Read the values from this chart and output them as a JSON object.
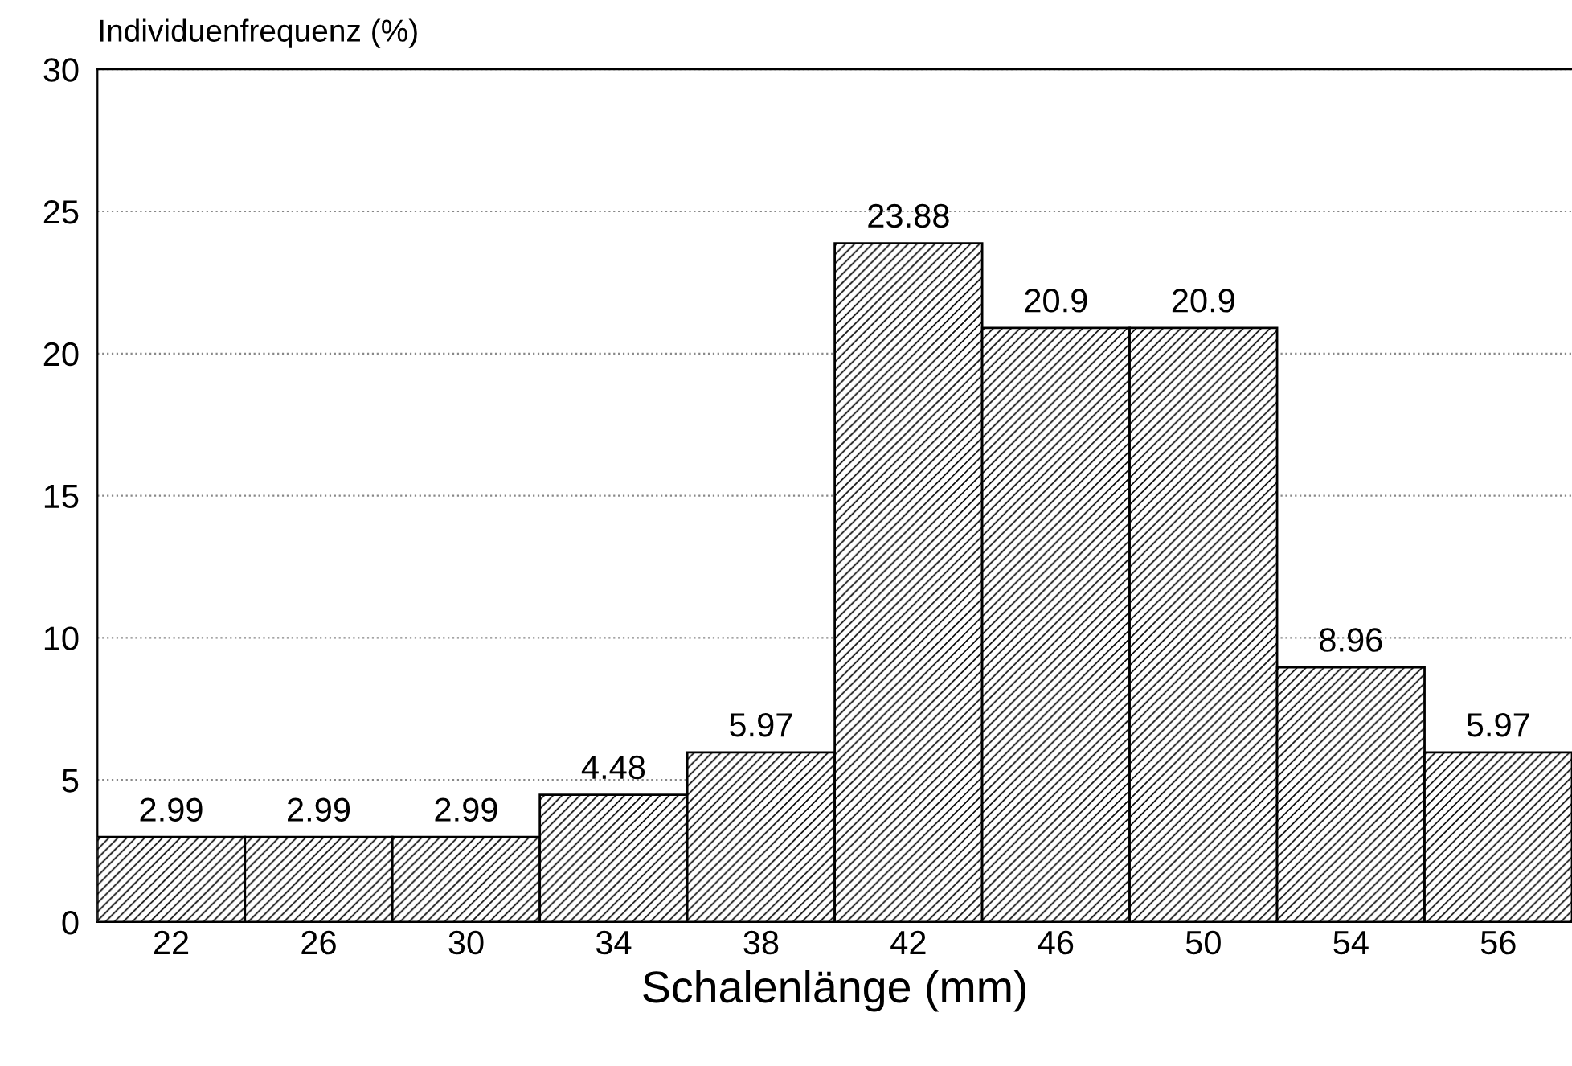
{
  "chart_data": {
    "type": "bar",
    "xlabel": "Schalenlänge (mm)",
    "ylabel": "Individuenfrequenz (%)",
    "categories": [
      "22",
      "26",
      "30",
      "34",
      "38",
      "42",
      "46",
      "50",
      "54",
      "56"
    ],
    "values": [
      2.99,
      2.99,
      2.99,
      4.48,
      5.97,
      23.88,
      20.9,
      20.9,
      8.96,
      5.97
    ],
    "color": "#000000",
    "ylim": [
      0,
      30
    ],
    "yticks": [
      0,
      5,
      10,
      15,
      20,
      25,
      30
    ],
    "grid": "y",
    "data_labels": true,
    "legend": false
  }
}
